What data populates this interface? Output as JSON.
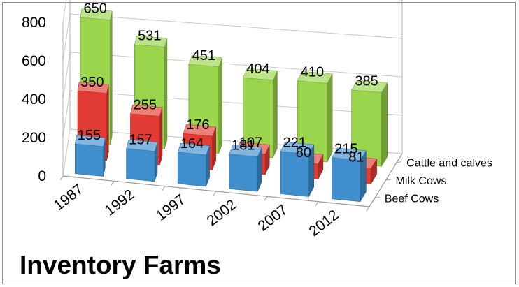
{
  "chart_data": {
    "type": "bar",
    "title": "Inventory Farms",
    "categories": [
      "1987",
      "1992",
      "1997",
      "2002",
      "2007",
      "2012"
    ],
    "series": [
      {
        "name": "Beef Cows",
        "values": [
          155,
          157,
          164,
          181,
          221,
          215
        ],
        "color": "#3f8fcf"
      },
      {
        "name": "Milk Cows",
        "values": [
          350,
          255,
          176,
          107,
          80,
          81
        ],
        "color": "#e23b33"
      },
      {
        "name": "Cattle and calves",
        "values": [
          650,
          531,
          451,
          404,
          410,
          385
        ],
        "color": "#9ad54c"
      }
    ],
    "yticks": [
      0,
      200,
      400,
      600,
      800
    ],
    "ylim": [
      0,
      800
    ],
    "grid": true,
    "projection": "3d-column",
    "data_labels": true
  }
}
